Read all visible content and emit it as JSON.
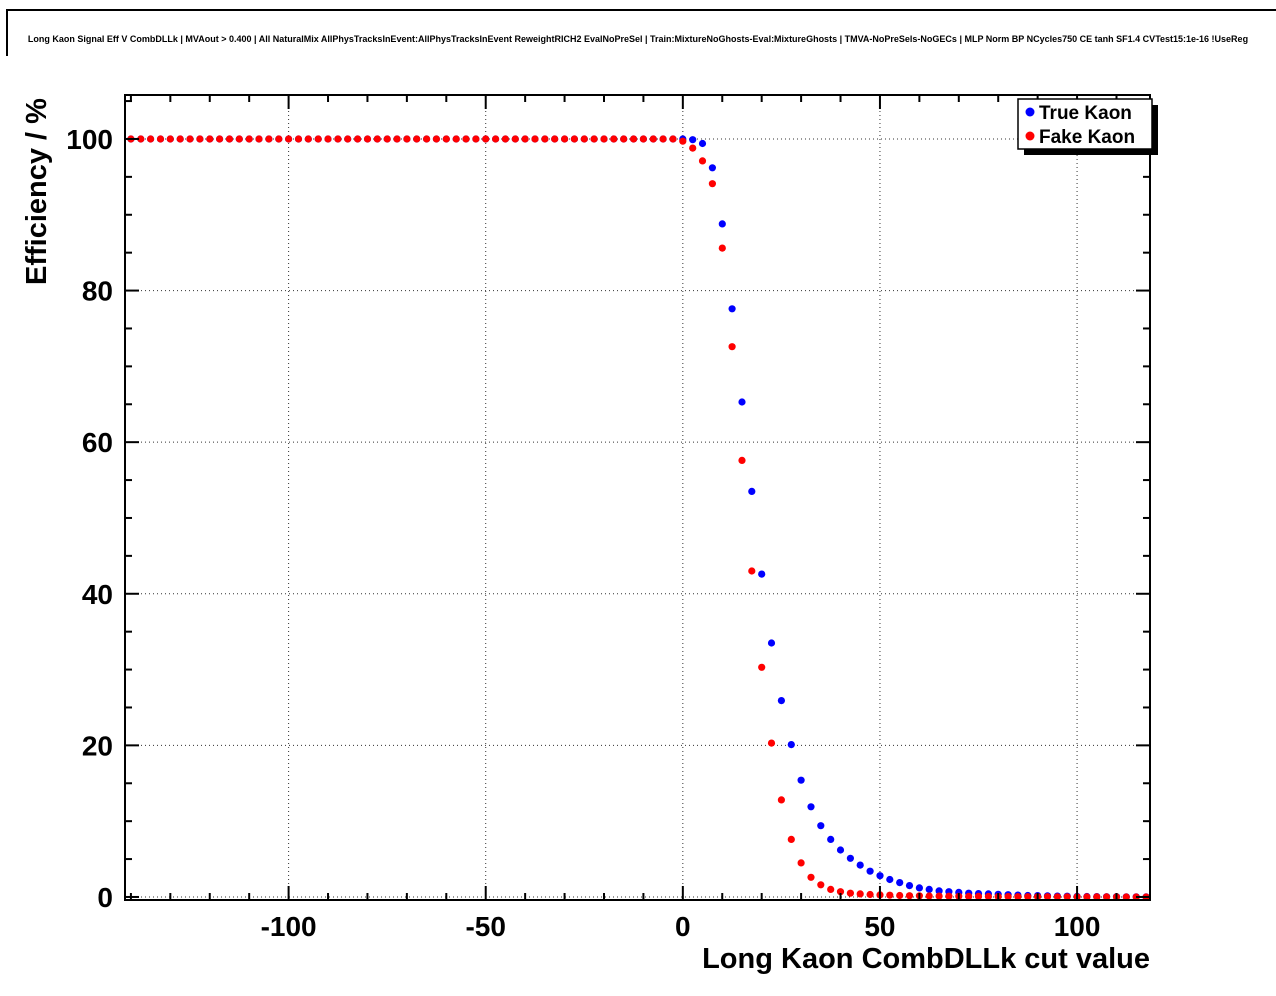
{
  "chart_data": {
    "type": "scatter",
    "title": "Long Kaon Signal Eff V CombDLLk | MVAout > 0.400 | All NaturalMix AllPhysTracksInEvent:AllPhysTracksInEvent ReweightRICH2 EvalNoPreSel | Train:MixtureNoGhosts-Eval:MixtureGhosts | TMVA-NoPreSels-NoGECs | MLP Norm BP NCycles750 CE tanh SF1.4 CVTest15:1e-16 !UseReg",
    "xlabel": "Long Kaon CombDLLk cut value",
    "ylabel": "Efficiency / %",
    "xlim": [
      -141.5,
      118.5
    ],
    "ylim": [
      -0.4,
      105.8
    ],
    "x_ticks": [
      -100,
      -50,
      0,
      50,
      100
    ],
    "y_ticks": [
      0,
      20,
      40,
      60,
      80,
      100
    ],
    "x_minor_step": 10,
    "y_minor_step": 5,
    "grid": true,
    "legend_position": "top-right",
    "x": [
      -140,
      -137.5,
      -135,
      -132.5,
      -130,
      -127.5,
      -125,
      -122.5,
      -120,
      -117.5,
      -115,
      -112.5,
      -110,
      -107.5,
      -105,
      -102.5,
      -100,
      -97.5,
      -95,
      -92.5,
      -90,
      -87.5,
      -85,
      -82.5,
      -80,
      -77.5,
      -75,
      -72.5,
      -70,
      -67.5,
      -65,
      -62.5,
      -60,
      -57.5,
      -55,
      -52.5,
      -50,
      -47.5,
      -45,
      -42.5,
      -40,
      -37.5,
      -35,
      -32.5,
      -30,
      -27.5,
      -25,
      -22.5,
      -20,
      -17.5,
      -15,
      -12.5,
      -10,
      -7.5,
      -5,
      -2.5,
      0,
      2.5,
      5,
      7.5,
      10,
      12.5,
      15,
      17.5,
      20,
      22.5,
      25,
      27.5,
      30,
      32.5,
      35,
      37.5,
      40,
      42.5,
      45,
      47.5,
      50,
      52.5,
      55,
      57.5,
      60,
      62.5,
      65,
      67.5,
      70,
      72.5,
      75,
      77.5,
      80,
      82.5,
      85,
      87.5,
      90,
      92.5,
      95,
      97.5,
      100,
      102.5,
      105,
      107.5,
      110,
      112.5,
      115,
      117.5
    ],
    "series": [
      {
        "name": "True Kaon",
        "color": "#0000ff",
        "values": [
          100,
          100,
          100,
          100,
          100,
          100,
          100,
          100,
          100,
          100,
          100,
          100,
          100,
          100,
          100,
          100,
          100,
          100,
          100,
          100,
          100,
          100,
          100,
          100,
          100,
          100,
          100,
          100,
          100,
          100,
          100,
          100,
          100,
          100,
          100,
          100,
          100,
          100,
          100,
          100,
          100,
          100,
          100,
          100,
          100,
          100,
          100,
          100,
          100,
          100,
          100,
          100,
          100,
          100,
          100,
          100,
          100,
          99.9,
          99.4,
          96.2,
          88.8,
          77.6,
          65.3,
          53.5,
          42.6,
          33.5,
          25.9,
          20.1,
          15.4,
          11.9,
          9.4,
          7.6,
          6.2,
          5.1,
          4.2,
          3.4,
          2.8,
          2.3,
          1.9,
          1.5,
          1.2,
          1,
          0.8,
          0.7,
          0.6,
          0.5,
          0.45,
          0.4,
          0.35,
          0.3,
          0.25,
          0.2,
          0.18,
          0.15,
          0.12,
          0.1,
          0.08,
          0.06,
          0.05,
          0.04,
          0.03,
          0.02,
          0.02,
          0.01
        ]
      },
      {
        "name": "Fake Kaon",
        "color": "#ff0000",
        "values": [
          100,
          100,
          100,
          100,
          100,
          100,
          100,
          100,
          100,
          100,
          100,
          100,
          100,
          100,
          100,
          100,
          100,
          100,
          100,
          100,
          100,
          100,
          100,
          100,
          100,
          100,
          100,
          100,
          100,
          100,
          100,
          100,
          100,
          100,
          100,
          100,
          100,
          100,
          100,
          100,
          100,
          100,
          100,
          100,
          100,
          100,
          100,
          100,
          100,
          100,
          100,
          100,
          100,
          100,
          100,
          100,
          99.7,
          98.8,
          97.1,
          94.1,
          85.6,
          72.6,
          57.6,
          43,
          30.3,
          20.3,
          12.8,
          7.6,
          4.5,
          2.6,
          1.6,
          1,
          0.7,
          0.5,
          0.4,
          0.32,
          0.27,
          0.23,
          0.2,
          0.17,
          0.15,
          0.13,
          0.11,
          0.1,
          0.09,
          0.08,
          0.07,
          0.06,
          0.05,
          0.05,
          0.04,
          0.04,
          0.03,
          0.03,
          0.02,
          0.02,
          0.02,
          0.01,
          0.01,
          0.01,
          0.01,
          0,
          0,
          0
        ]
      }
    ]
  }
}
